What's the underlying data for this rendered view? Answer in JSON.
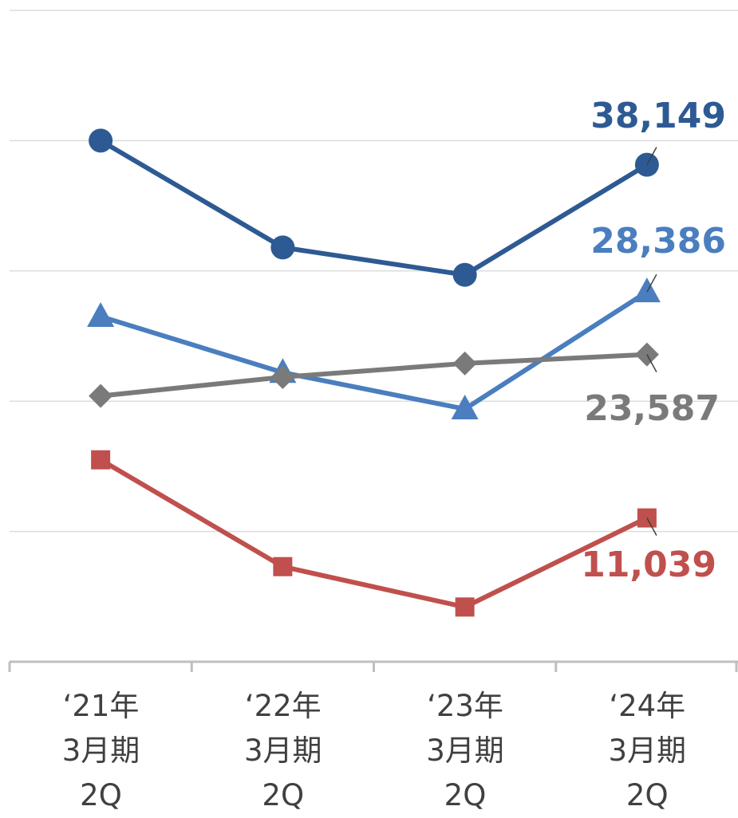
{
  "chart_data": {
    "type": "line",
    "categories": [
      "‘21年\n3月期\n2Q",
      "‘22年\n3月期\n2Q",
      "‘23年\n3月期\n2Q",
      "‘24年\n3月期\n2Q"
    ],
    "ylim": [
      0,
      50000
    ],
    "yticks": [
      0,
      10000,
      20000,
      30000,
      40000,
      50000
    ],
    "grid": true,
    "series": [
      {
        "color": "#2e5a93",
        "marker": "circle",
        "values": [
          40000,
          31800,
          29700,
          38149
        ],
        "value_labels": [
          null,
          null,
          null,
          "38,149"
        ]
      },
      {
        "color": "#4a7ebf",
        "marker": "triangle",
        "values": [
          26500,
          22200,
          19400,
          28386
        ],
        "value_labels": [
          null,
          null,
          null,
          "28,386"
        ]
      },
      {
        "color": "#7a7a7a",
        "marker": "diamond",
        "values": [
          20400,
          21850,
          22900,
          23587
        ],
        "value_labels": [
          null,
          null,
          null,
          "23,587"
        ]
      },
      {
        "color": "#c0504d",
        "marker": "square",
        "values": [
          15500,
          7300,
          4200,
          11039
        ],
        "value_labels": [
          null,
          null,
          null,
          "11,039"
        ]
      }
    ]
  }
}
